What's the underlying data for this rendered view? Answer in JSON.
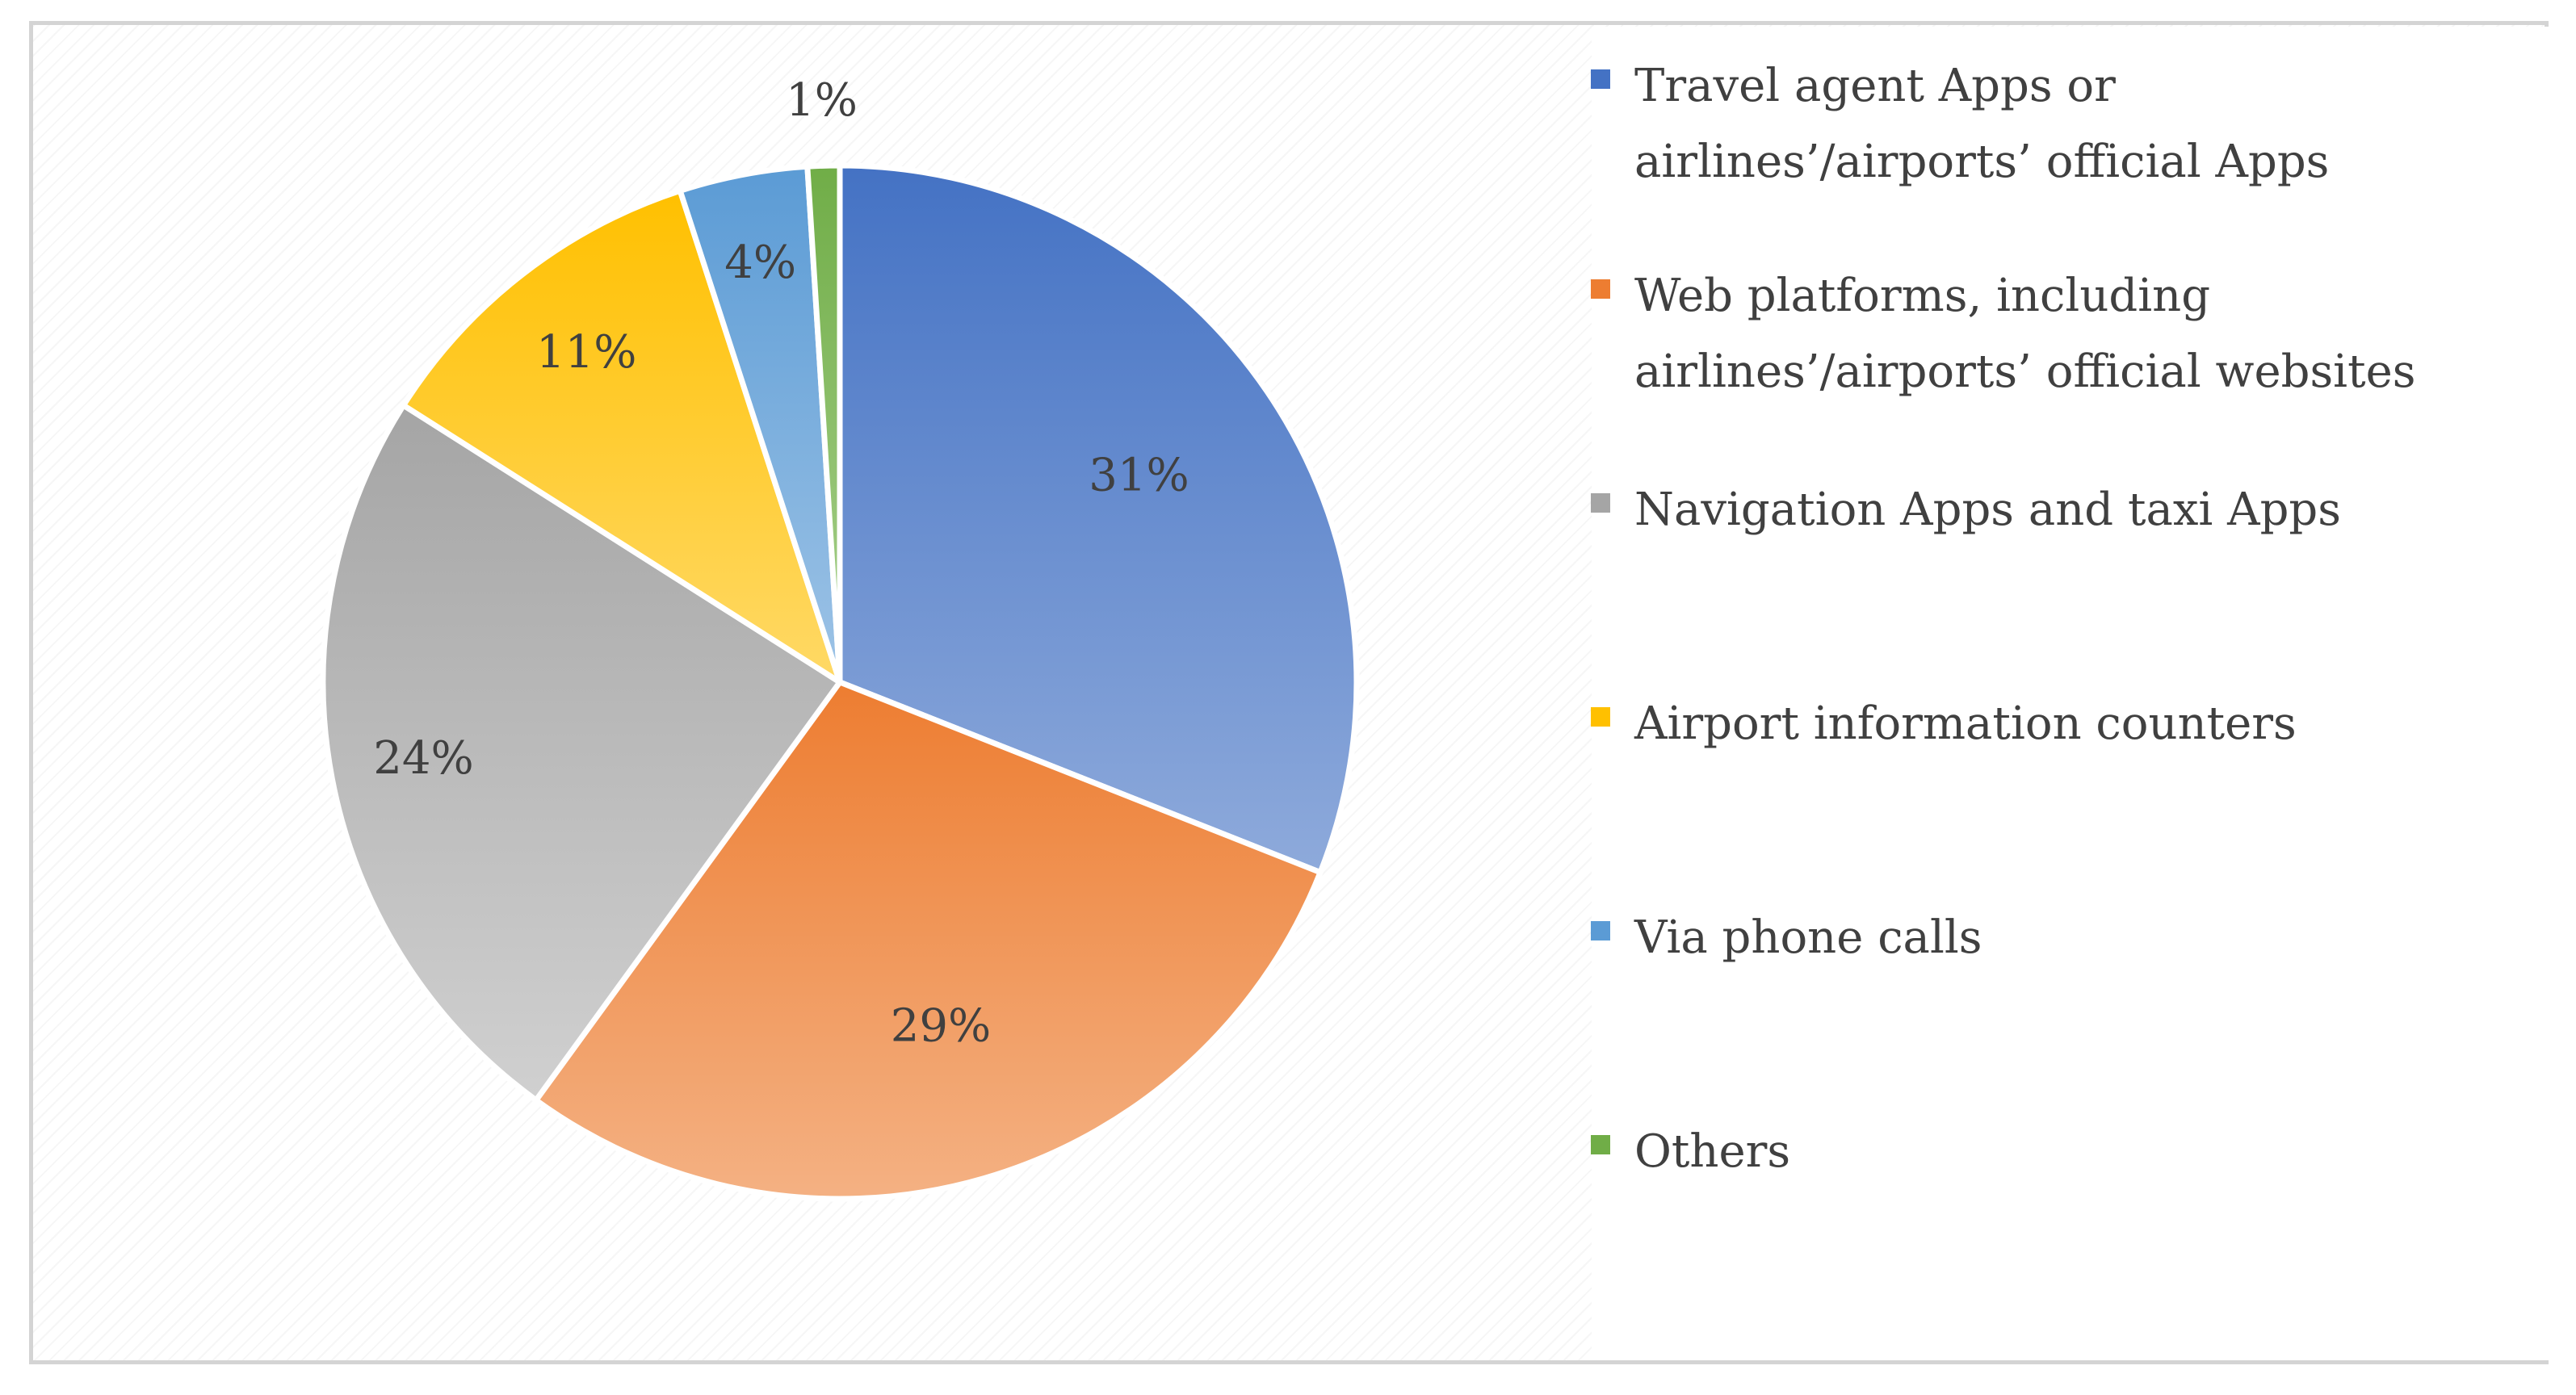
{
  "chart_data": {
    "type": "pie",
    "title": "",
    "categories": [
      "Travel agent Apps or airlines’/airports’ official Apps",
      "Web platforms, including airlines’/airports’ official websites",
      "Navigation Apps and taxi Apps",
      "Airport information counters",
      "Via phone calls",
      "Others"
    ],
    "values": [
      31,
      29,
      24,
      11,
      4,
      1
    ],
    "value_labels": [
      "31%",
      "29%",
      "24%",
      "11%",
      "4%",
      "1%"
    ],
    "colors": [
      {
        "light": "#8eaadb",
        "dark": "#4472c4"
      },
      {
        "light": "#f4b183",
        "dark": "#ed7d31"
      },
      {
        "light": "#d0d0d0",
        "dark": "#a5a5a5"
      },
      {
        "light": "#ffd966",
        "dark": "#ffc000"
      },
      {
        "light": "#9dc3e6",
        "dark": "#5b9bd5"
      },
      {
        "light": "#a9d18e",
        "dark": "#70ad47"
      }
    ],
    "legend_position": "right",
    "start_angle_deg": 0,
    "direction": "clockwise"
  }
}
